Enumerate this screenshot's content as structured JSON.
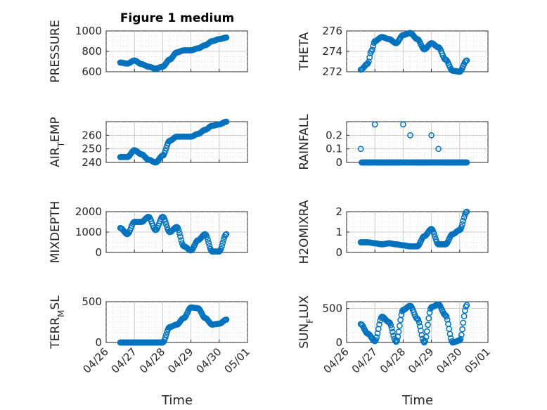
{
  "figure_title": "Figure 1 medium",
  "x_axis_label": "Time",
  "x_tick_labels": [
    "04/26",
    "04/27",
    "04/28",
    "04/29",
    "04/30",
    "05/01"
  ],
  "marker_color": "#0072BD",
  "chart_data": [
    {
      "type": "scatter",
      "ylabel": "PRESSURE",
      "ylim": [
        600,
        1000
      ],
      "yticks": [
        "600",
        "800",
        "1000"
      ],
      "x": [
        "04/26 12:00",
        "04/26 18:00",
        "04/27 00:00",
        "04/27 06:00",
        "04/27 12:00",
        "04/27 18:00",
        "04/28 00:00",
        "04/28 06:00",
        "04/28 12:00",
        "04/28 18:00",
        "04/29 00:00",
        "04/29 06:00",
        "04/29 12:00",
        "04/29 18:00",
        "04/30 00:00",
        "04/30 06:00"
      ],
      "y": [
        690,
        680,
        710,
        675,
        650,
        630,
        650,
        720,
        790,
        810,
        810,
        830,
        860,
        900,
        920,
        935
      ]
    },
    {
      "type": "scatter",
      "ylabel": "THETA",
      "ylim": [
        272,
        276
      ],
      "yticks": [
        "272",
        "274",
        "276"
      ],
      "x": [
        "04/26 12:00",
        "04/26 18:00",
        "04/26 21:00",
        "04/27 00:00",
        "04/27 06:00",
        "04/27 12:00",
        "04/27 18:00",
        "04/28 00:00",
        "04/28 06:00",
        "04/28 12:00",
        "04/28 18:00",
        "04/29 00:00",
        "04/29 06:00",
        "04/29 12:00",
        "04/29 18:00",
        "04/30 00:00",
        "04/30 06:00"
      ],
      "y": [
        272.2,
        272.8,
        274.0,
        275.0,
        275.4,
        275.2,
        274.8,
        275.6,
        275.8,
        275.2,
        274.2,
        274.8,
        274.4,
        273.2,
        272.1,
        272.0,
        273.1
      ]
    },
    {
      "type": "scatter",
      "ylabel": "AIR_TEMP",
      "ylim": [
        240,
        270
      ],
      "yticks": [
        "240",
        "250",
        "260"
      ],
      "x": [
        "04/26 12:00",
        "04/26 18:00",
        "04/27 00:00",
        "04/27 06:00",
        "04/27 12:00",
        "04/27 18:00",
        "04/28 00:00",
        "04/28 06:00",
        "04/28 12:00",
        "04/28 18:00",
        "04/29 00:00",
        "04/29 06:00",
        "04/29 12:00",
        "04/29 18:00",
        "04/30 00:00",
        "04/30 06:00"
      ],
      "y": [
        244,
        244,
        249,
        246,
        242,
        240,
        245,
        256,
        259,
        259,
        259,
        261,
        264,
        267,
        268,
        270
      ]
    },
    {
      "type": "scatter",
      "ylabel": "RAINFALL",
      "ylim": [
        0,
        0.3
      ],
      "yticks": [
        "0",
        "0.1",
        "0.2"
      ],
      "x": [
        "04/26 12:00",
        "04/26 15:00",
        "04/26 18:00",
        "04/27 00:00",
        "04/27 06:00",
        "04/27 12:00",
        "04/27 18:00",
        "04/28 00:00",
        "04/28 06:00",
        "04/28 12:00",
        "04/28 18:00",
        "04/29 00:00",
        "04/29 06:00",
        "04/29 12:00",
        "04/29 18:00",
        "04/30 00:00",
        "04/30 06:00"
      ],
      "y": [
        0.1,
        0,
        0,
        0.28,
        0,
        0,
        0,
        0.28,
        0.2,
        0,
        0,
        0.2,
        0.1,
        0,
        0,
        0,
        0
      ]
    },
    {
      "type": "scatter",
      "ylabel": "MIXDEPTH",
      "ylim": [
        0,
        2000
      ],
      "yticks": [
        "0",
        "1000",
        "2000"
      ],
      "x": [
        "04/26 12:00",
        "04/26 18:00",
        "04/27 00:00",
        "04/27 06:00",
        "04/27 12:00",
        "04/27 18:00",
        "04/28 00:00",
        "04/28 06:00",
        "04/28 12:00",
        "04/28 18:00",
        "04/29 00:00",
        "04/29 06:00",
        "04/29 12:00",
        "04/29 18:00",
        "04/30 00:00",
        "04/30 06:00"
      ],
      "y": [
        1200,
        900,
        1500,
        1500,
        1750,
        1100,
        1750,
        1000,
        1250,
        300,
        100,
        600,
        900,
        50,
        50,
        900
      ]
    },
    {
      "type": "scatter",
      "ylabel": "H2OMIXRA",
      "ylim": [
        0,
        2
      ],
      "yticks": [
        "0",
        "1",
        "2"
      ],
      "x": [
        "04/26 12:00",
        "04/26 18:00",
        "04/27 00:00",
        "04/27 06:00",
        "04/27 12:00",
        "04/27 18:00",
        "04/28 00:00",
        "04/28 06:00",
        "04/28 12:00",
        "04/28 18:00",
        "04/29 00:00",
        "04/29 06:00",
        "04/29 12:00",
        "04/29 18:00",
        "04/30 00:00",
        "04/30 06:00"
      ],
      "y": [
        0.5,
        0.5,
        0.45,
        0.4,
        0.45,
        0.4,
        0.35,
        0.3,
        0.3,
        0.8,
        1.15,
        0.4,
        0.4,
        0.9,
        1.1,
        2.0
      ]
    },
    {
      "type": "scatter",
      "ylabel": "TERR_MSL",
      "ylim": [
        0,
        500
      ],
      "yticks": [
        "0",
        "500"
      ],
      "x": [
        "04/26 12:00",
        "04/27 00:00",
        "04/27 12:00",
        "04/28 00:00",
        "04/28 06:00",
        "04/28 12:00",
        "04/28 18:00",
        "04/29 00:00",
        "04/29 06:00",
        "04/29 12:00",
        "04/29 18:00",
        "04/30 00:00",
        "04/30 06:00"
      ],
      "y": [
        0,
        0,
        0,
        0,
        190,
        220,
        300,
        430,
        420,
        300,
        220,
        230,
        280
      ]
    },
    {
      "type": "scatter",
      "ylabel": "SUN_FLUX",
      "ylim": [
        0,
        600
      ],
      "yticks": [
        "0",
        "500"
      ],
      "x": [
        "04/26 12:00",
        "04/26 18:00",
        "04/27 00:00",
        "04/27 06:00",
        "04/27 12:00",
        "04/27 18:00",
        "04/28 00:00",
        "04/28 06:00",
        "04/28 12:00",
        "04/28 18:00",
        "04/29 00:00",
        "04/29 06:00",
        "04/29 12:00",
        "04/29 18:00",
        "04/30 00:00",
        "04/30 06:00"
      ],
      "y": [
        270,
        130,
        20,
        380,
        300,
        10,
        480,
        540,
        350,
        0,
        520,
        560,
        400,
        0,
        30,
        550
      ]
    }
  ]
}
